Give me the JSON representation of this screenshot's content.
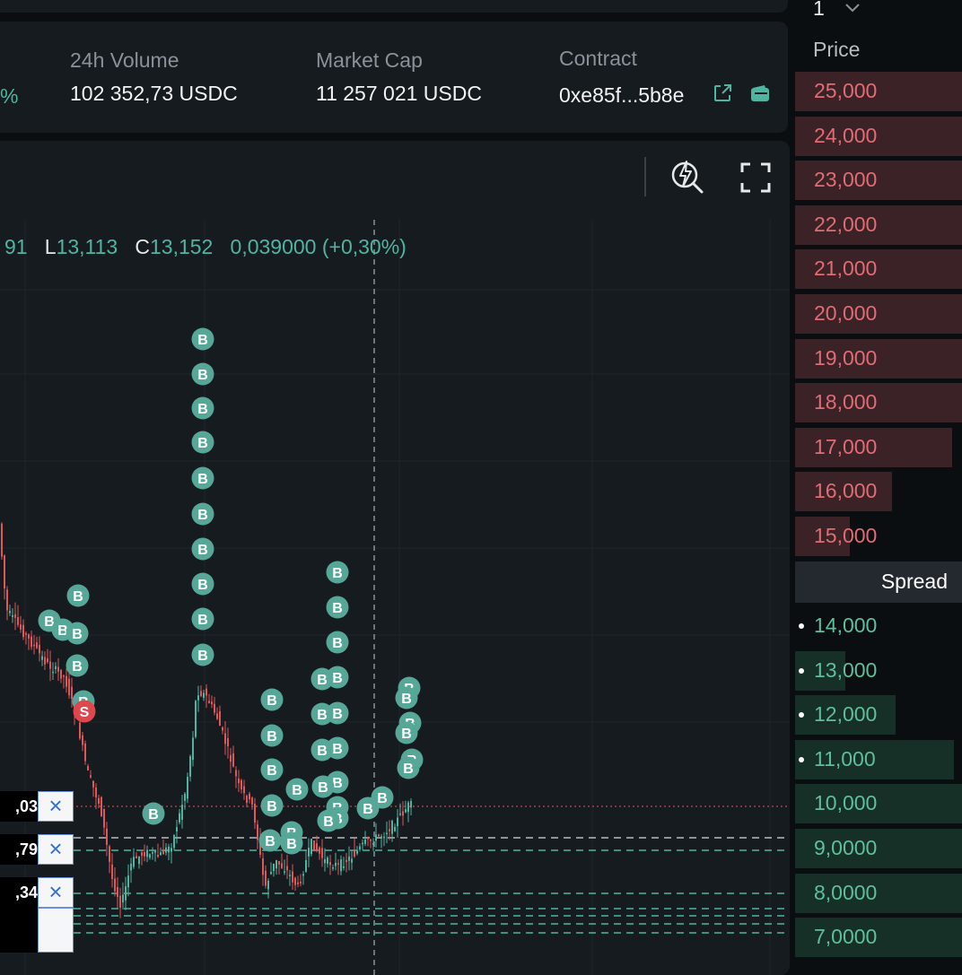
{
  "stats": {
    "change_fragment": "%",
    "volume_label": "24h Volume",
    "volume_value": "102 352,73 USDC",
    "market_cap_label": "Market Cap",
    "market_cap_value": "11 257 021 USDC",
    "contract_label": "Contract",
    "contract_value": "0xe85f...5b8e"
  },
  "ohlc": {
    "high_fragment": "91",
    "low_key": "L",
    "low_value": "13,113",
    "close_key": "C",
    "close_value": "13,152",
    "change_abs": "0,039000",
    "change_pct": "(+0,30%)"
  },
  "chart_data": {
    "type": "candlestick",
    "up_color": "#4fb5a0",
    "down_color": "#e0575b",
    "marker_buy_label": "B",
    "marker_sell_label": "S",
    "buy_color": "#56a797",
    "sell_color": "#e0474c"
  },
  "orders": [
    {
      "value": ",03",
      "close_label": "×"
    },
    {
      "value": ",79",
      "close_label": "×"
    },
    {
      "value": ",34",
      "close_label": "×"
    }
  ],
  "orderbook": {
    "depth_selector": "1",
    "price_header": "Price",
    "spread_label": "Spread",
    "asks": [
      {
        "price": "25,000",
        "depth": 1.0
      },
      {
        "price": "24,000",
        "depth": 1.0
      },
      {
        "price": "23,000",
        "depth": 1.0
      },
      {
        "price": "22,000",
        "depth": 1.0
      },
      {
        "price": "21,000",
        "depth": 1.0
      },
      {
        "price": "20,000",
        "depth": 1.0
      },
      {
        "price": "19,000",
        "depth": 1.0
      },
      {
        "price": "18,000",
        "depth": 1.0
      },
      {
        "price": "17,000",
        "depth": 0.94
      },
      {
        "price": "16,000",
        "depth": 0.58
      },
      {
        "price": "15,000",
        "depth": 0.33
      }
    ],
    "bids": [
      {
        "price": "14,000",
        "depth": 0.0,
        "dot": true
      },
      {
        "price": "13,000",
        "depth": 0.3,
        "dot": true
      },
      {
        "price": "12,000",
        "depth": 0.6,
        "dot": true
      },
      {
        "price": "11,000",
        "depth": 0.95,
        "dot": true
      },
      {
        "price": "10,000",
        "depth": 1.0,
        "dot": false
      },
      {
        "price": "9,0000",
        "depth": 1.0,
        "dot": false
      },
      {
        "price": "8,0000",
        "depth": 1.0,
        "dot": false
      },
      {
        "price": "7,0000",
        "depth": 1.0,
        "dot": false
      }
    ]
  },
  "icons": {
    "external_link": "external-link-icon",
    "wallet": "wallet-icon",
    "quick_zoom": "quick-search-icon",
    "fullscreen": "fullscreen-icon",
    "chevron": "chevron-down-icon"
  }
}
